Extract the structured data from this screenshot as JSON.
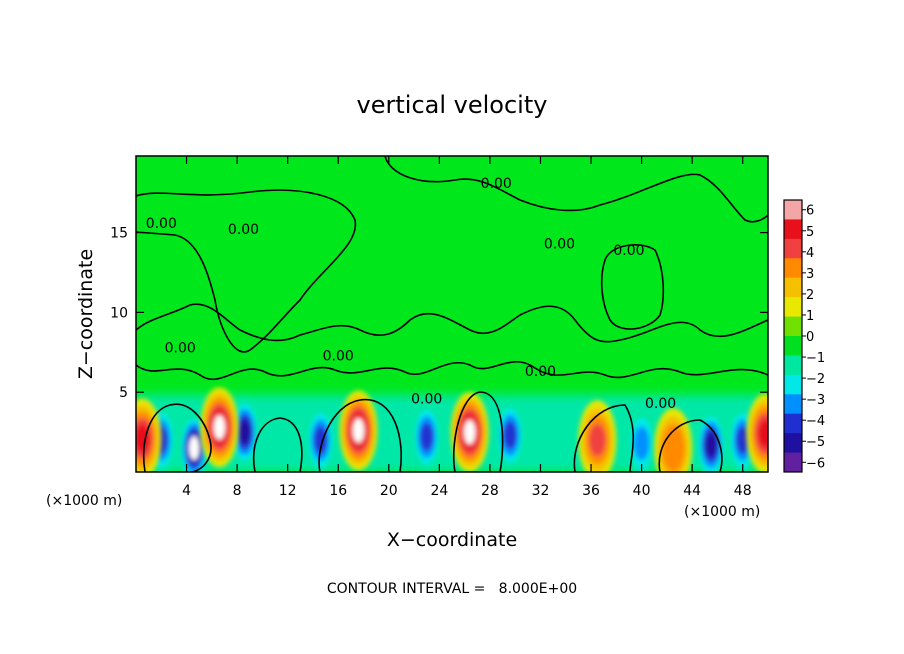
{
  "chart_data": {
    "type": "heatmap",
    "title": "vertical velocity",
    "xlabel": "X−coordinate",
    "ylabel": "Z−coordinate",
    "x_unit_left": "(×1000 m)",
    "x_unit_right": "(×1000 m)",
    "xlim": [
      0,
      50
    ],
    "ylim": [
      0,
      19.8
    ],
    "x_ticks": [
      4,
      8,
      12,
      16,
      20,
      24,
      28,
      32,
      36,
      40,
      44,
      48
    ],
    "y_ticks": [
      5,
      10,
      15
    ],
    "note": "CONTOUR INTERVAL =   8.000E+00",
    "colorbar": {
      "ticks": [
        6,
        5,
        4,
        3,
        2,
        1,
        0,
        -1,
        -2,
        -3,
        -4,
        -5,
        -6
      ],
      "labels": [
        "6",
        "5",
        "4",
        "3",
        "2",
        "1",
        "0",
        "−1",
        "−2",
        "−3",
        "−4",
        "−5",
        "−6"
      ],
      "colors": [
        "#f4a6a6",
        "#e8101a",
        "#f04040",
        "#ff8a00",
        "#f4c000",
        "#e8e800",
        "#70e000",
        "#00e020",
        "#00e8a0",
        "#00e8e8",
        "#0090ff",
        "#2030d0",
        "#2010a0",
        "#6020a0"
      ]
    },
    "contour_labels": [
      {
        "text": "0.00",
        "x": 2.0,
        "z": 15.3
      },
      {
        "text": "0.00",
        "x": 8.5,
        "z": 14.9
      },
      {
        "text": "0.00",
        "x": 28.5,
        "z": 17.8
      },
      {
        "text": "0.00",
        "x": 33.5,
        "z": 14.0
      },
      {
        "text": "0.00",
        "x": 39.0,
        "z": 13.6
      },
      {
        "text": "0.00",
        "x": 3.5,
        "z": 7.5
      },
      {
        "text": "0.00",
        "x": 16.0,
        "z": 7.0
      },
      {
        "text": "0.00",
        "x": 23.0,
        "z": 4.3
      },
      {
        "text": "0.00",
        "x": 32.0,
        "z": 6.0
      },
      {
        "text": "0.00",
        "x": 41.5,
        "z": 4.0
      }
    ],
    "updrafts": [
      {
        "x": 0.5,
        "z": 2.1,
        "w": 4.5
      },
      {
        "x": 6.6,
        "z": 2.8,
        "w": 5.5
      },
      {
        "x": 17.6,
        "z": 2.6,
        "w": 6.0
      },
      {
        "x": 26.4,
        "z": 2.5,
        "w": 6.0
      },
      {
        "x": 36.5,
        "z": 2.0,
        "w": 3.5
      },
      {
        "x": 42.5,
        "z": 1.5,
        "w": 3.2
      },
      {
        "x": 49.8,
        "z": 2.4,
        "w": 5.0
      }
    ],
    "downdrafts": [
      {
        "x": 2.0,
        "z": 2.0,
        "w": -3.5
      },
      {
        "x": 4.6,
        "z": 1.5,
        "w": -5.5
      },
      {
        "x": 8.6,
        "z": 2.5,
        "w": -4.5
      },
      {
        "x": 14.6,
        "z": 2.0,
        "w": -4.0
      },
      {
        "x": 23.0,
        "z": 2.2,
        "w": -3.5
      },
      {
        "x": 29.6,
        "z": 2.3,
        "w": -4.0
      },
      {
        "x": 40.0,
        "z": 1.8,
        "w": -3.0
      },
      {
        "x": 45.5,
        "z": 1.7,
        "w": -5.0
      },
      {
        "x": 48.0,
        "z": 2.0,
        "w": -3.5
      }
    ]
  }
}
